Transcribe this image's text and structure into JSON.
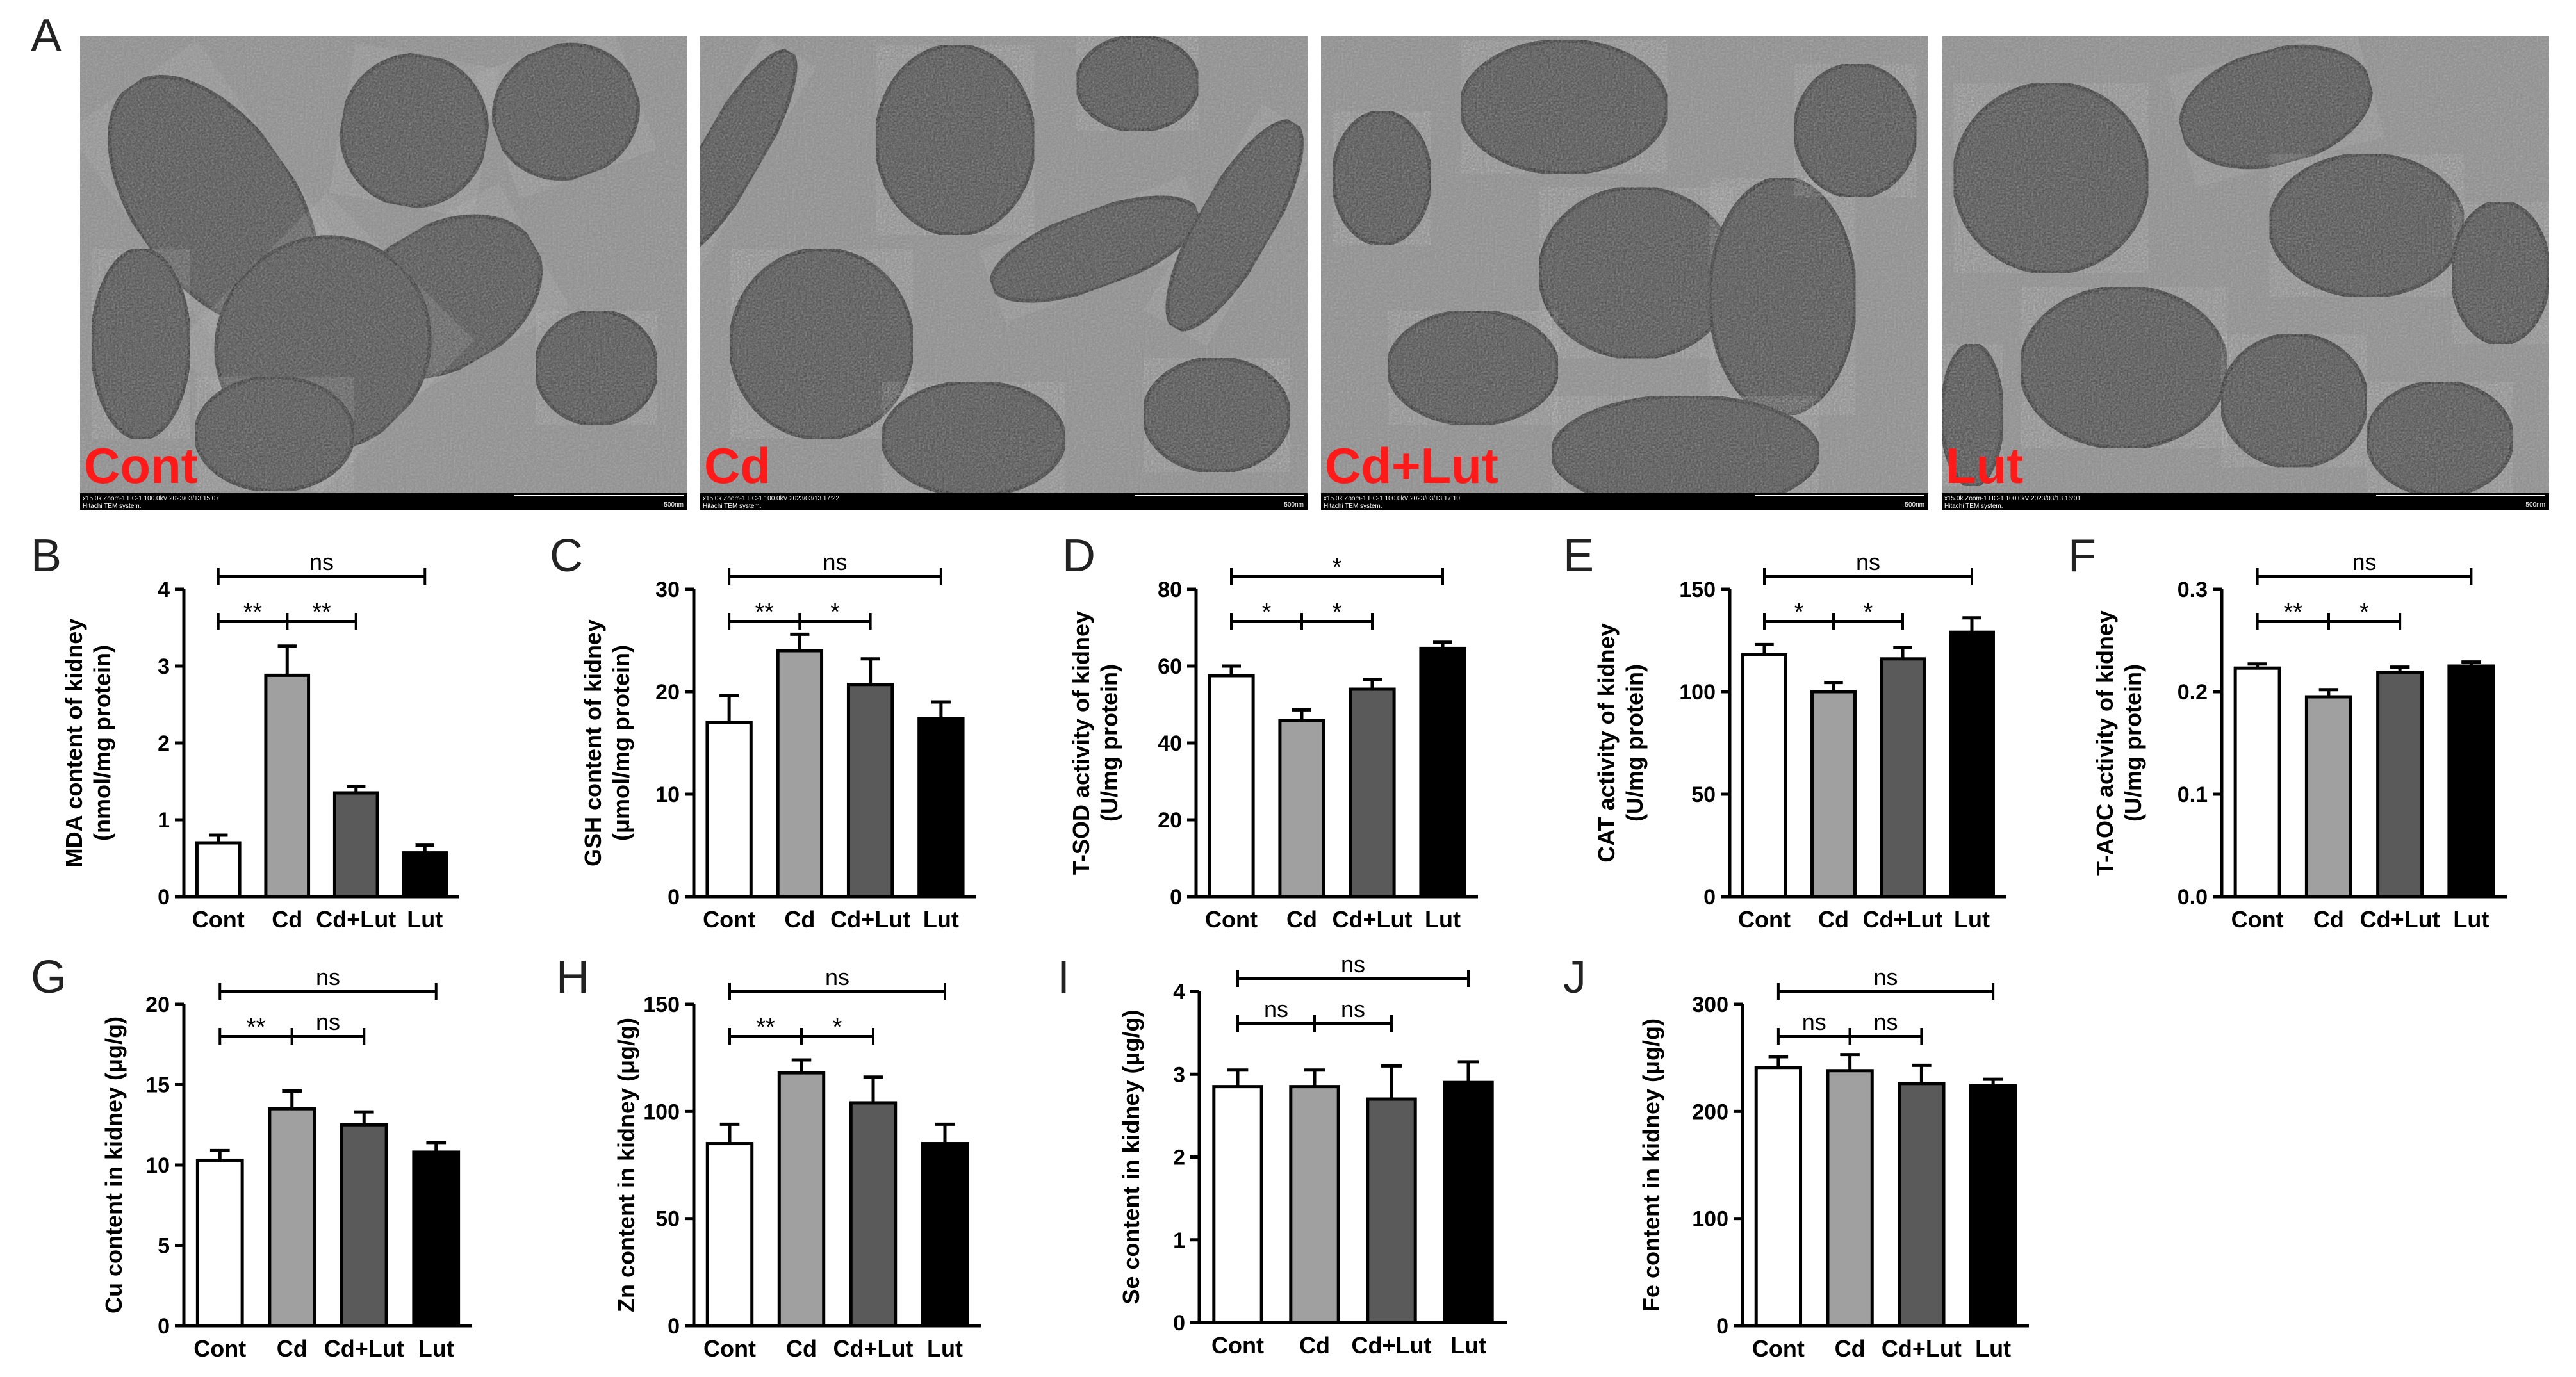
{
  "panel_a": {
    "letter": "A",
    "images": [
      {
        "label": "Cont",
        "info_left": "x15.0k Zoom-1 HC-1 100.0kV 2023/03/13 15:07",
        "info_left2": "Hitachi TEM system.",
        "scale": "500nm"
      },
      {
        "label": "Cd",
        "info_left": "x15.0k Zoom-1 HC-1 100.0kV 2023/03/13 17:22",
        "info_left2": "Hitachi TEM system.",
        "scale": "500nm"
      },
      {
        "label": "Cd+Lut",
        "info_left": "x15.0k Zoom-1 HC-1 100.0kV 2023/03/13 17:10",
        "info_left2": "Hitachi TEM system.",
        "scale": "500nm"
      },
      {
        "label": "Lut",
        "info_left": "x15.0k Zoom-1 HC-1 100.0kV 2023/03/13 16:01",
        "info_left2": "Hitachi TEM system.",
        "scale": "500nm"
      }
    ],
    "label_color": "#ff1a1a"
  },
  "chart_data": [
    {
      "panel": "B",
      "type": "bar",
      "ylabel_lines": [
        "MDA content of kidney",
        "(nmol/mg protein)"
      ],
      "categories": [
        "Cont",
        "Cd",
        "Cd+Lut",
        "Lut"
      ],
      "values": [
        0.7,
        2.88,
        1.35,
        0.57
      ],
      "errors": [
        0.1,
        0.38,
        0.08,
        0.1
      ],
      "ylim": [
        0,
        4
      ],
      "yticks": [
        0,
        1,
        2,
        3,
        4
      ],
      "ytick_labels": [
        "0",
        "1",
        "2",
        "3",
        "4"
      ],
      "annotations": [
        {
          "from": 0,
          "to": 3,
          "text": "ns",
          "level": 0
        },
        {
          "from": 0,
          "to": 1,
          "text": "**",
          "level": 1
        },
        {
          "from": 1,
          "to": 2,
          "text": "**",
          "level": 1
        }
      ]
    },
    {
      "panel": "C",
      "type": "bar",
      "ylabel_lines": [
        "GSH content of kidney",
        "(μmol/mg protein)"
      ],
      "categories": [
        "Cont",
        "Cd",
        "Cd+Lut",
        "Lut"
      ],
      "values": [
        17,
        24,
        20.7,
        17.4
      ],
      "errors": [
        2.6,
        1.6,
        2.5,
        1.6
      ],
      "ylim": [
        0,
        30
      ],
      "yticks": [
        0,
        10,
        20,
        30
      ],
      "ytick_labels": [
        "0",
        "10",
        "20",
        "30"
      ],
      "annotations": [
        {
          "from": 0,
          "to": 3,
          "text": "ns",
          "level": 0
        },
        {
          "from": 0,
          "to": 1,
          "text": "**",
          "level": 1
        },
        {
          "from": 1,
          "to": 2,
          "text": "*",
          "level": 1
        }
      ]
    },
    {
      "panel": "D",
      "type": "bar",
      "ylabel_lines": [
        "T-SOD activity of kidney",
        "(U/mg protein)"
      ],
      "categories": [
        "Cont",
        "Cd",
        "Cd+Lut",
        "Lut"
      ],
      "values": [
        57.5,
        45.8,
        54,
        64.6
      ],
      "errors": [
        2.5,
        2.8,
        2.5,
        1.6
      ],
      "ylim": [
        0,
        80
      ],
      "yticks": [
        0,
        20,
        40,
        60,
        80
      ],
      "ytick_labels": [
        "0",
        "20",
        "40",
        "60",
        "80"
      ],
      "annotations": [
        {
          "from": 0,
          "to": 3,
          "text": "*",
          "level": 0
        },
        {
          "from": 0,
          "to": 1,
          "text": "*",
          "level": 1
        },
        {
          "from": 1,
          "to": 2,
          "text": "*",
          "level": 1
        }
      ]
    },
    {
      "panel": "E",
      "type": "bar",
      "ylabel_lines": [
        "CAT activity of kidney",
        "(U/mg protein)"
      ],
      "categories": [
        "Cont",
        "Cd",
        "Cd+Lut",
        "Lut"
      ],
      "values": [
        118,
        100,
        116,
        129
      ],
      "errors": [
        5,
        4.5,
        5.5,
        7
      ],
      "ylim": [
        0,
        150
      ],
      "yticks": [
        0,
        50,
        100,
        150
      ],
      "ytick_labels": [
        "0",
        "50",
        "100",
        "150"
      ],
      "annotations": [
        {
          "from": 0,
          "to": 3,
          "text": "ns",
          "level": 0
        },
        {
          "from": 0,
          "to": 1,
          "text": "*",
          "level": 1
        },
        {
          "from": 1,
          "to": 2,
          "text": "*",
          "level": 1
        }
      ]
    },
    {
      "panel": "F",
      "type": "bar",
      "ylabel_lines": [
        "T-AOC activity of kidney",
        "(U/mg protein)"
      ],
      "categories": [
        "Cont",
        "Cd",
        "Cd+Lut",
        "Lut"
      ],
      "values": [
        0.223,
        0.195,
        0.219,
        0.225
      ],
      "errors": [
        0.004,
        0.007,
        0.005,
        0.004
      ],
      "ylim": [
        0,
        0.3
      ],
      "yticks": [
        0,
        0.1,
        0.2,
        0.3
      ],
      "ytick_labels": [
        "0.0",
        "0.1",
        "0.2",
        "0.3"
      ],
      "annotations": [
        {
          "from": 0,
          "to": 3,
          "text": "ns",
          "level": 0
        },
        {
          "from": 0,
          "to": 1,
          "text": "**",
          "level": 1
        },
        {
          "from": 1,
          "to": 2,
          "text": "*",
          "level": 1
        }
      ]
    },
    {
      "panel": "G",
      "type": "bar",
      "ylabel_lines": [
        "Cu content in kidney (μg/g)"
      ],
      "categories": [
        "Cont",
        "Cd",
        "Cd+Lut",
        "Lut"
      ],
      "values": [
        10.3,
        13.5,
        12.5,
        10.8
      ],
      "errors": [
        0.6,
        1.1,
        0.8,
        0.6
      ],
      "ylim": [
        0,
        20
      ],
      "yticks": [
        0,
        5,
        10,
        15,
        20
      ],
      "ytick_labels": [
        "0",
        "5",
        "10",
        "15",
        "20"
      ],
      "annotations": [
        {
          "from": 0,
          "to": 3,
          "text": "ns",
          "level": 0
        },
        {
          "from": 0,
          "to": 1,
          "text": "**",
          "level": 1
        },
        {
          "from": 1,
          "to": 2,
          "text": "ns",
          "level": 1
        }
      ]
    },
    {
      "panel": "H",
      "type": "bar",
      "ylabel_lines": [
        "Zn content in kidney (μg/g)"
      ],
      "categories": [
        "Cont",
        "Cd",
        "Cd+Lut",
        "Lut"
      ],
      "values": [
        85,
        118,
        104,
        85
      ],
      "errors": [
        9,
        6,
        12,
        9
      ],
      "ylim": [
        0,
        150
      ],
      "yticks": [
        0,
        50,
        100,
        150
      ],
      "ytick_labels": [
        "0",
        "50",
        "100",
        "150"
      ],
      "annotations": [
        {
          "from": 0,
          "to": 3,
          "text": "ns",
          "level": 0
        },
        {
          "from": 0,
          "to": 1,
          "text": "**",
          "level": 1
        },
        {
          "from": 1,
          "to": 2,
          "text": "*",
          "level": 1
        }
      ]
    },
    {
      "panel": "I",
      "type": "bar",
      "ylabel_lines": [
        "Se content in kidney (μg/g)"
      ],
      "categories": [
        "Cont",
        "Cd",
        "Cd+Lut",
        "Lut"
      ],
      "values": [
        2.85,
        2.85,
        2.7,
        2.9
      ],
      "errors": [
        0.2,
        0.2,
        0.4,
        0.25
      ],
      "ylim": [
        0,
        4
      ],
      "yticks": [
        0,
        1,
        2,
        3,
        4
      ],
      "ytick_labels": [
        "0",
        "1",
        "2",
        "3",
        "4"
      ],
      "annotations": [
        {
          "from": 0,
          "to": 3,
          "text": "ns",
          "level": 0
        },
        {
          "from": 0,
          "to": 1,
          "text": "ns",
          "level": 1
        },
        {
          "from": 1,
          "to": 2,
          "text": "ns",
          "level": 1
        }
      ]
    },
    {
      "panel": "J",
      "type": "bar",
      "ylabel_lines": [
        "Fe content in kidney (μg/g)"
      ],
      "categories": [
        "Cont",
        "Cd",
        "Cd+Lut",
        "Lut"
      ],
      "values": [
        241,
        238,
        226,
        224
      ],
      "errors": [
        10,
        15,
        17,
        6
      ],
      "ylim": [
        0,
        300
      ],
      "yticks": [
        0,
        100,
        200,
        300
      ],
      "ytick_labels": [
        "0",
        "100",
        "200",
        "300"
      ],
      "annotations": [
        {
          "from": 0,
          "to": 3,
          "text": "ns",
          "level": 0
        },
        {
          "from": 0,
          "to": 1,
          "text": "ns",
          "level": 1
        },
        {
          "from": 1,
          "to": 2,
          "text": "ns",
          "level": 1
        }
      ]
    }
  ],
  "bar_colors": [
    "#ffffff",
    "#a0a0a0",
    "#5a5a5a",
    "#000000"
  ]
}
